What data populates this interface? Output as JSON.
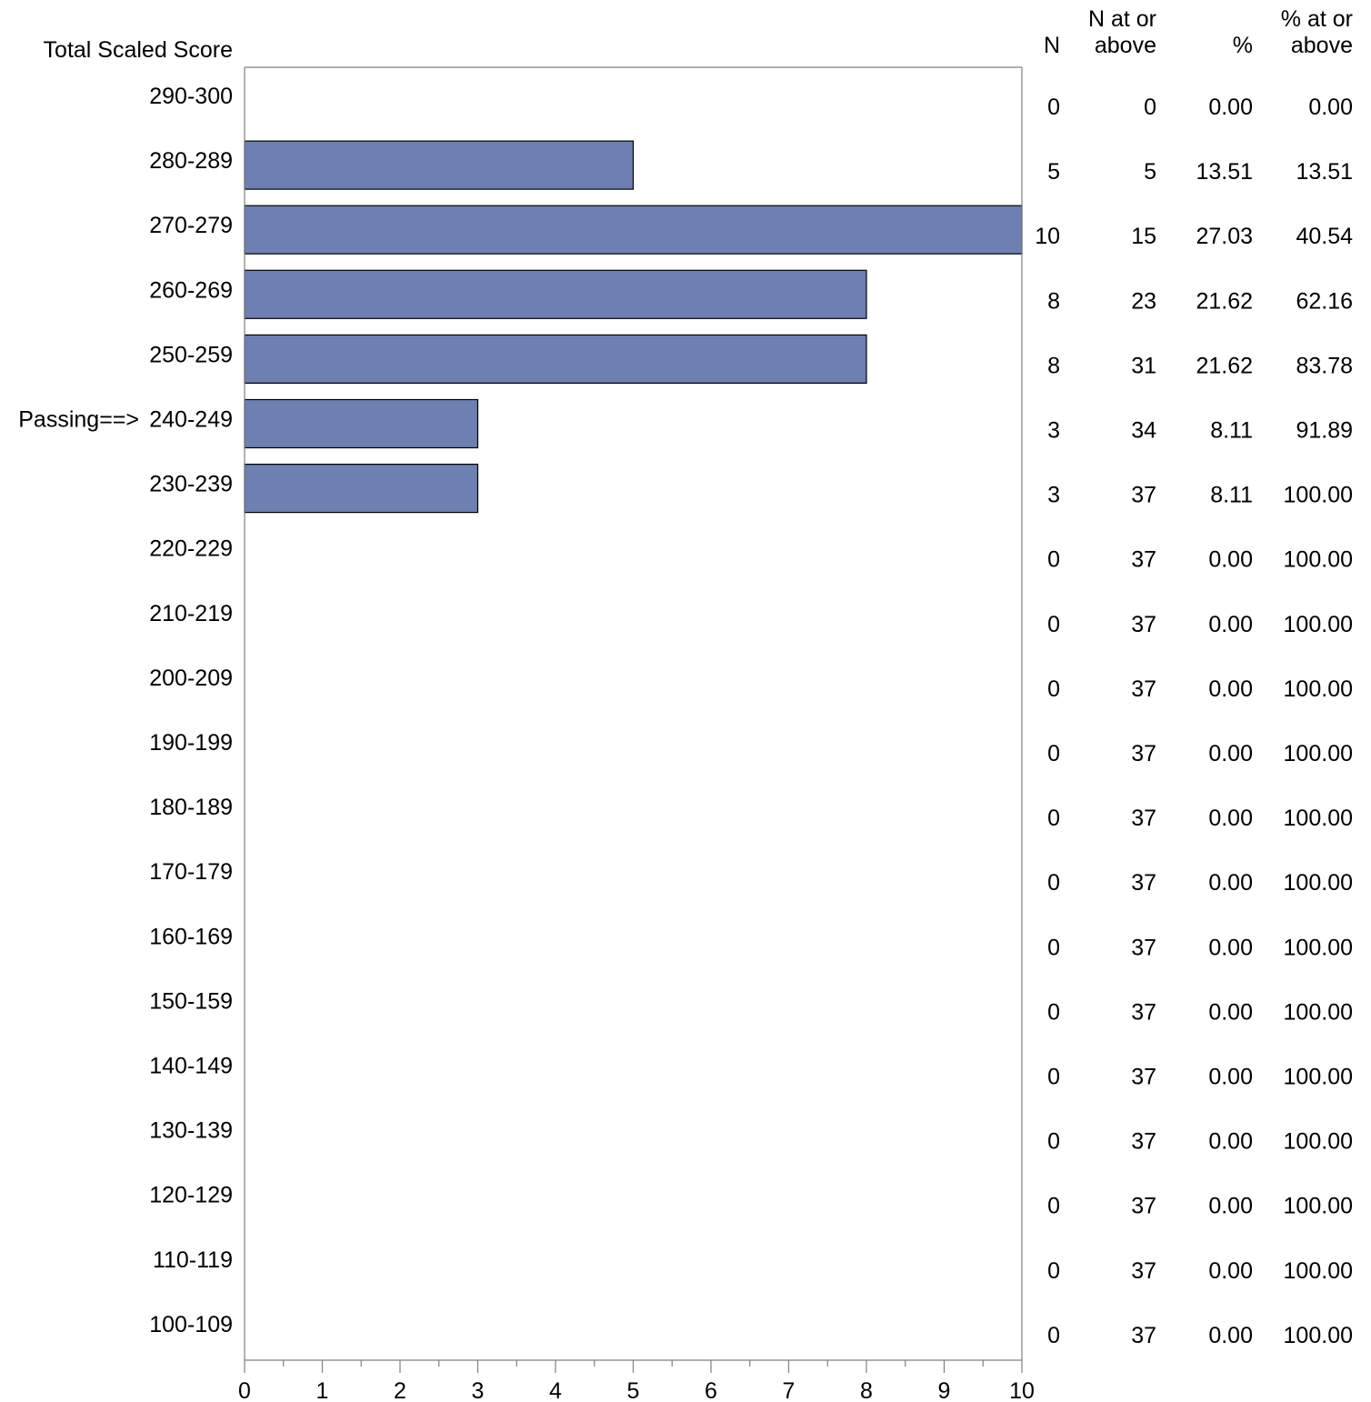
{
  "chart_data": {
    "type": "bar",
    "orientation": "horizontal",
    "title": "",
    "ylabel": "Total Scaled Score",
    "xlabel": "",
    "xlim": [
      0,
      10
    ],
    "x_ticks": [
      "0",
      "1",
      "2",
      "3",
      "4",
      "5",
      "6",
      "7",
      "8",
      "9",
      "10"
    ],
    "grid": false,
    "bar_color": "#6E7FB1",
    "passing_marker": "Passing==>",
    "passing_category": "240-249",
    "categories": [
      "290-300",
      "280-289",
      "270-279",
      "260-269",
      "250-259",
      "240-249",
      "230-239",
      "220-229",
      "210-219",
      "200-209",
      "190-199",
      "180-189",
      "170-179",
      "160-169",
      "150-159",
      "140-149",
      "130-139",
      "120-129",
      "110-119",
      "100-109"
    ],
    "values": [
      0,
      5,
      10,
      8,
      8,
      3,
      3,
      0,
      0,
      0,
      0,
      0,
      0,
      0,
      0,
      0,
      0,
      0,
      0,
      0
    ]
  },
  "table": {
    "headers": {
      "n": "N",
      "n_at_or_above": [
        "N at or",
        "above"
      ],
      "pct": "%",
      "pct_at_or_above": [
        "% at or",
        "above"
      ]
    },
    "rows": [
      {
        "n": "0",
        "n_at_or_above": "0",
        "pct": "0.00",
        "pct_at_or_above": "0.00"
      },
      {
        "n": "5",
        "n_at_or_above": "5",
        "pct": "13.51",
        "pct_at_or_above": "13.51"
      },
      {
        "n": "10",
        "n_at_or_above": "15",
        "pct": "27.03",
        "pct_at_or_above": "40.54"
      },
      {
        "n": "8",
        "n_at_or_above": "23",
        "pct": "21.62",
        "pct_at_or_above": "62.16"
      },
      {
        "n": "8",
        "n_at_or_above": "31",
        "pct": "21.62",
        "pct_at_or_above": "83.78"
      },
      {
        "n": "3",
        "n_at_or_above": "34",
        "pct": "8.11",
        "pct_at_or_above": "91.89"
      },
      {
        "n": "3",
        "n_at_or_above": "37",
        "pct": "8.11",
        "pct_at_or_above": "100.00"
      },
      {
        "n": "0",
        "n_at_or_above": "37",
        "pct": "0.00",
        "pct_at_or_above": "100.00"
      },
      {
        "n": "0",
        "n_at_or_above": "37",
        "pct": "0.00",
        "pct_at_or_above": "100.00"
      },
      {
        "n": "0",
        "n_at_or_above": "37",
        "pct": "0.00",
        "pct_at_or_above": "100.00"
      },
      {
        "n": "0",
        "n_at_or_above": "37",
        "pct": "0.00",
        "pct_at_or_above": "100.00"
      },
      {
        "n": "0",
        "n_at_or_above": "37",
        "pct": "0.00",
        "pct_at_or_above": "100.00"
      },
      {
        "n": "0",
        "n_at_or_above": "37",
        "pct": "0.00",
        "pct_at_or_above": "100.00"
      },
      {
        "n": "0",
        "n_at_or_above": "37",
        "pct": "0.00",
        "pct_at_or_above": "100.00"
      },
      {
        "n": "0",
        "n_at_or_above": "37",
        "pct": "0.00",
        "pct_at_or_above": "100.00"
      },
      {
        "n": "0",
        "n_at_or_above": "37",
        "pct": "0.00",
        "pct_at_or_above": "100.00"
      },
      {
        "n": "0",
        "n_at_or_above": "37",
        "pct": "0.00",
        "pct_at_or_above": "100.00"
      },
      {
        "n": "0",
        "n_at_or_above": "37",
        "pct": "0.00",
        "pct_at_or_above": "100.00"
      },
      {
        "n": "0",
        "n_at_or_above": "37",
        "pct": "0.00",
        "pct_at_or_above": "100.00"
      },
      {
        "n": "0",
        "n_at_or_above": "37",
        "pct": "0.00",
        "pct_at_or_above": "100.00"
      }
    ]
  }
}
